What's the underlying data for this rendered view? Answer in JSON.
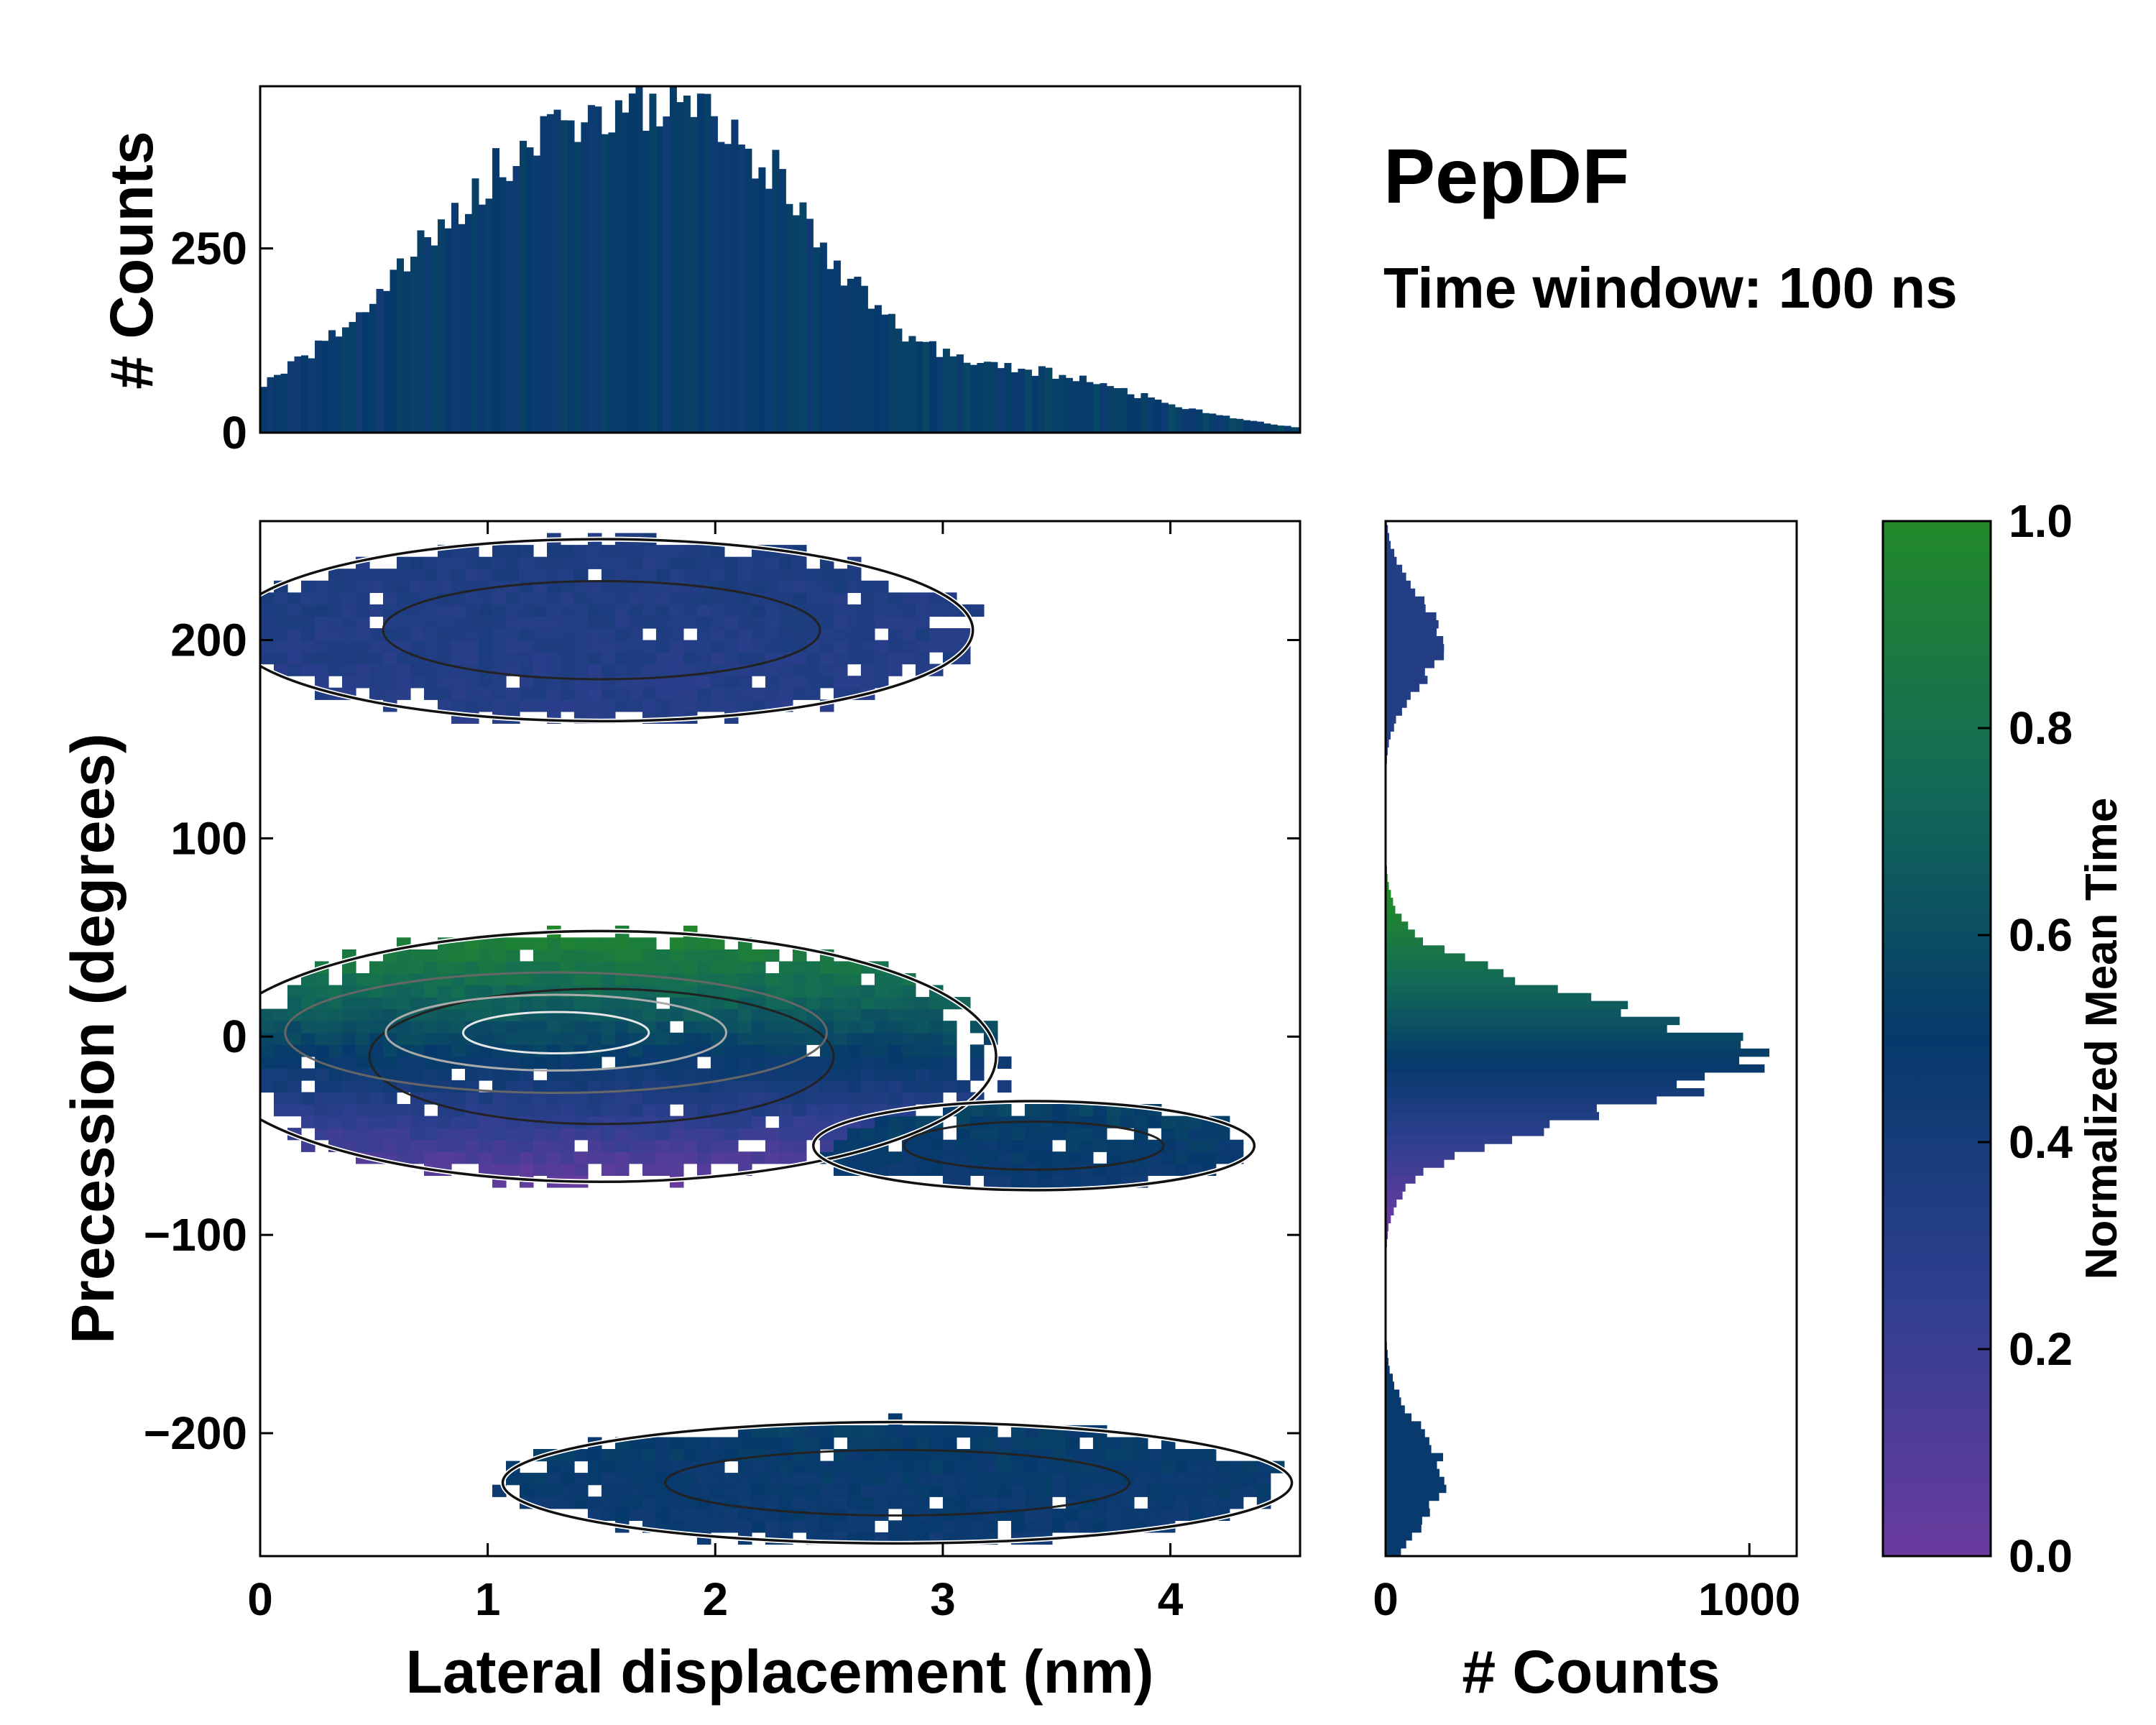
{
  "title": "PepDF",
  "subtitle": "Time window: 100 ns",
  "chart_data": [
    {
      "id": "joint",
      "type": "heatmap",
      "xlabel": "Lateral displacement (nm)",
      "ylabel": "Precession (degrees)",
      "xlim": [
        0,
        4.57
      ],
      "ylim": [
        -262,
        260
      ],
      "xticks": [
        0,
        1,
        2,
        3,
        4
      ],
      "yticks": [
        -200,
        -100,
        0,
        100,
        200
      ],
      "colormap": [
        "#6a3b9e",
        "#2f3f8f",
        "#063a6b",
        "#136b56",
        "#22892a"
      ],
      "blobs": [
        {
          "name": "central",
          "cx": 1.5,
          "cy": -10,
          "rx": 1.7,
          "ry": 62,
          "tmin": 0.05,
          "tmax": 0.95
        },
        {
          "name": "tail",
          "cx": 3.4,
          "cy": -55,
          "rx": 0.95,
          "ry": 22,
          "tmin": 0.45,
          "tmax": 0.55
        },
        {
          "name": "upper",
          "cx": 1.5,
          "cy": 205,
          "rx": 1.6,
          "ry": 45,
          "tmin": 0.3,
          "tmax": 0.36
        },
        {
          "name": "lower",
          "cx": 2.8,
          "cy": -225,
          "rx": 1.7,
          "ry": 30,
          "tmin": 0.45,
          "tmax": 0.52
        }
      ]
    },
    {
      "id": "top-histogram",
      "type": "bar",
      "xlabel": "",
      "ylabel": "# Counts",
      "xlim": [
        0,
        4.57
      ],
      "ylim": [
        0,
        470
      ],
      "yticks": [
        0,
        250
      ],
      "bin_width": 0.03,
      "peaks": [
        {
          "x": 1.45,
          "sigma": 0.75,
          "amp": 410
        },
        {
          "x": 2.15,
          "sigma": 0.35,
          "amp": 120
        },
        {
          "x": 3.4,
          "sigma": 0.55,
          "amp": 70
        }
      ]
    },
    {
      "id": "right-histogram",
      "type": "bar",
      "orientation": "horizontal",
      "xlabel": "# Counts",
      "ylabel": "",
      "xlim": [
        0,
        1130
      ],
      "ylim": [
        -262,
        260
      ],
      "xticks": [
        0,
        1000
      ],
      "bin_height": 4,
      "peaks": [
        {
          "y": -10,
          "sigma": 28,
          "amp": 980
        },
        {
          "y": 200,
          "sigma": 22,
          "amp": 160
        },
        {
          "y": -222,
          "sigma": 24,
          "amp": 160
        }
      ]
    },
    {
      "id": "colorbar",
      "type": "colorbar",
      "label": "Normalized Mean Time",
      "range": [
        0.0,
        1.0
      ],
      "ticks": [
        "0.0",
        "0.2",
        "0.4",
        "0.6",
        "0.8",
        "1.0"
      ]
    }
  ]
}
